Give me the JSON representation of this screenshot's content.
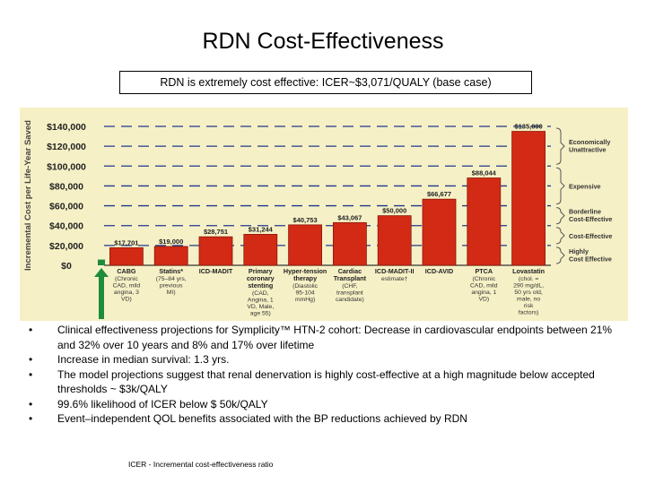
{
  "slide": {
    "title": "RDN Cost-Effectiveness",
    "subtitle": "RDN is extremely cost effective:  ICER~$3,071/QUALY (base case)",
    "bullets": [
      "Clinical effectiveness projections for Symplicity™ HTN-2 cohort: Decrease in cardiovascular endpoints between 21% and 32% over 10 years and 8% and 17% over lifetime",
      "Increase in median survival: 1.3 yrs.",
      "The model projections suggest that renal denervation is highly cost-effective at a high magnitude below accepted thresholds ~ $3k/QALY",
      "99.6% likelihood of ICER below $ 50k/QALY",
      "Event–independent QOL benefits associated with the BP reductions achieved by RDN"
    ],
    "footnote": "ICER  - Incremental cost-effectiveness ratio"
  },
  "chart_data": {
    "type": "bar",
    "title": "",
    "ylabel": "Incremental Cost per Life-Year Saved",
    "xlabel": "",
    "ylim": [
      0,
      140000
    ],
    "yticks": [
      0,
      20000,
      40000,
      60000,
      80000,
      100000,
      120000,
      140000
    ],
    "ytick_labels": [
      "$0",
      "$20,000",
      "$40,000",
      "$60,000",
      "$80,000",
      "$100,000",
      "$120,000",
      "$140,000"
    ],
    "categories": [
      {
        "name": "CABG",
        "detail": "(Chronic CAD, mild angina, 3 VD)"
      },
      {
        "name": "Statins*",
        "detail": "(75–84 yrs, previous MI)"
      },
      {
        "name": "ICD-MADIT",
        "detail": ""
      },
      {
        "name": "Primary coronary stenting",
        "detail": "(CAD, Angina, 1 VD, Male, age 55)"
      },
      {
        "name": "Hyper-tension therapy",
        "detail": "(Diastolic 95-104 mmHg)"
      },
      {
        "name": "Cardiac Transplant",
        "detail": "(CHF, transplant candidate)"
      },
      {
        "name": "ICD-MADIT-II",
        "detail": "estimate†"
      },
      {
        "name": "ICD-AVID",
        "detail": ""
      },
      {
        "name": "PTCA",
        "detail": "(Chronic CAD, mild angina, 1 VD)"
      },
      {
        "name": "Lovastatin",
        "detail": "(chol. = 290 mg/dL, 50 yrs old, male, no risk factors)"
      }
    ],
    "values": [
      17701,
      19000,
      28751,
      31244,
      40753,
      43067,
      50000,
      66677,
      88044,
      135000
    ],
    "value_labels": [
      "$17,701",
      "$19,000",
      "$28,751",
      "$31,244",
      "$40,753",
      "$43,067",
      "$50,000",
      "$66,677",
      "$88,044",
      "$135,000"
    ],
    "rdn": {
      "value": 3071,
      "color": "#1e8c3c"
    },
    "bar_color": "#d22a14",
    "grid_color": "#1f3a8a",
    "bands": [
      {
        "label": "Economically Unattractive",
        "from": 100000,
        "to": 140000
      },
      {
        "label": "Expensive",
        "from": 60000,
        "to": 100000
      },
      {
        "label": "Borderline Cost-Effective",
        "from": 40000,
        "to": 60000
      },
      {
        "label": "Cost-Effective",
        "from": 20000,
        "to": 40000
      },
      {
        "label": "Highly Cost Effective",
        "from": 0,
        "to": 20000
      }
    ]
  }
}
